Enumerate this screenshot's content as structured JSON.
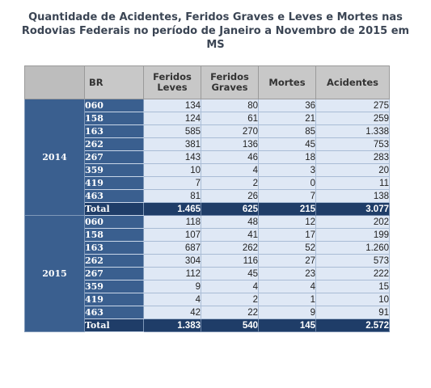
{
  "title_lines": [
    "Quantidade de Acidentes, Feridos Graves e Leves e Mortes nas",
    "Rodovias Federais no período de Janeiro a Novembro de 2015 em",
    "MS"
  ],
  "headers": {
    "br": "BR",
    "feridos_leves": [
      "Feridos",
      "Leves"
    ],
    "feridos_graves": [
      "Feridos",
      "Graves"
    ],
    "mortes": "Mortes",
    "acidentes": "Acidentes"
  },
  "groups": [
    {
      "year": "2014",
      "rows": [
        [
          "060",
          "134",
          "80",
          "36",
          "275"
        ],
        [
          "158",
          "124",
          "61",
          "21",
          "259"
        ],
        [
          "163",
          "585",
          "270",
          "85",
          "1.338"
        ],
        [
          "262",
          "381",
          "136",
          "45",
          "753"
        ],
        [
          "267",
          "143",
          "46",
          "18",
          "283"
        ],
        [
          "359",
          "10",
          "4",
          "3",
          "20"
        ],
        [
          "419",
          "7",
          "2",
          "0",
          "11"
        ],
        [
          "463",
          "81",
          "26",
          "7",
          "138"
        ],
        [
          "Total",
          "1.465",
          "625",
          "215",
          "3.077"
        ]
      ]
    },
    {
      "year": "2015",
      "rows": [
        [
          "060",
          "118",
          "48",
          "12",
          "202"
        ],
        [
          "158",
          "107",
          "41",
          "17",
          "199"
        ],
        [
          "163",
          "687",
          "262",
          "52",
          "1.260"
        ],
        [
          "262",
          "304",
          "116",
          "27",
          "573"
        ],
        [
          "267",
          "112",
          "45",
          "23",
          "222"
        ],
        [
          "359",
          "9",
          "4",
          "4",
          "15"
        ],
        [
          "419",
          "4",
          "2",
          "1",
          "10"
        ],
        [
          "463",
          "42",
          "22",
          "9",
          "91"
        ],
        [
          "Total",
          "1.383",
          "540",
          "145",
          "2.572"
        ]
      ]
    }
  ]
}
